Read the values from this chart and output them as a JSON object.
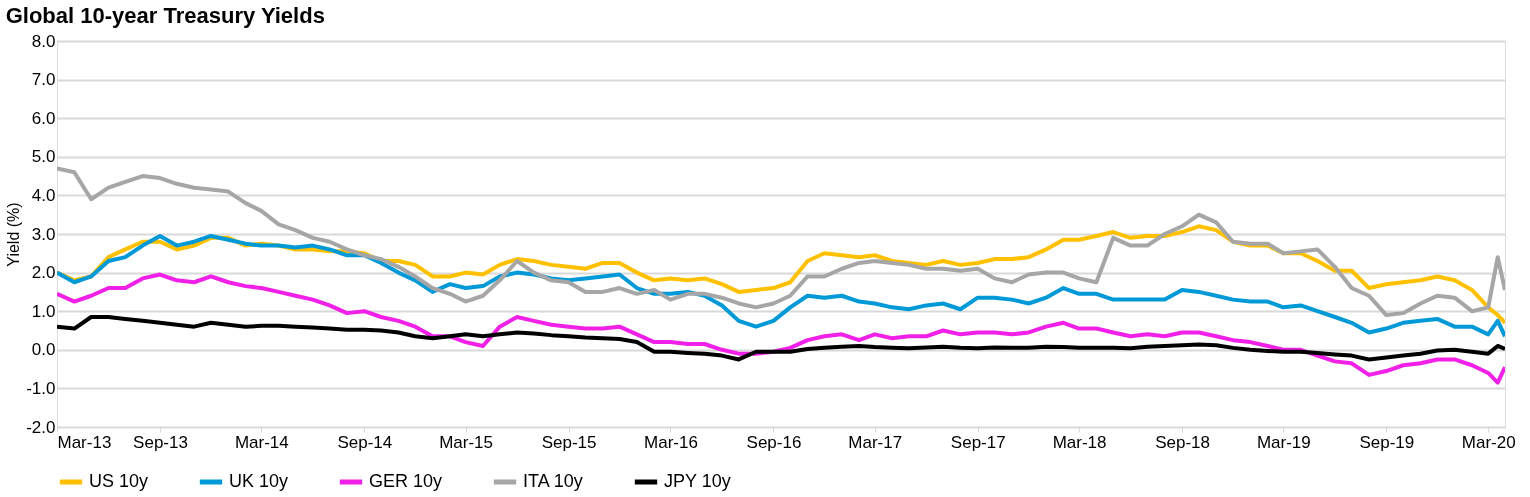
{
  "chart_data": {
    "type": "line",
    "title": "Global 10-year Treasury Yields",
    "ylabel": "Yield (%)",
    "x": [
      "2013-03-01",
      "2013-04-01",
      "2013-05-01",
      "2013-06-01",
      "2013-07-01",
      "2013-08-01",
      "2013-09-01",
      "2013-10-01",
      "2013-11-01",
      "2013-12-01",
      "2014-01-01",
      "2014-02-01",
      "2014-03-01",
      "2014-04-01",
      "2014-05-01",
      "2014-06-01",
      "2014-07-01",
      "2014-08-01",
      "2014-09-01",
      "2014-10-01",
      "2014-11-01",
      "2014-12-01",
      "2015-01-01",
      "2015-02-01",
      "2015-03-01",
      "2015-04-01",
      "2015-05-01",
      "2015-06-01",
      "2015-07-01",
      "2015-08-01",
      "2015-09-01",
      "2015-10-01",
      "2015-11-01",
      "2015-12-01",
      "2016-01-01",
      "2016-02-01",
      "2016-03-01",
      "2016-04-01",
      "2016-05-01",
      "2016-06-01",
      "2016-07-01",
      "2016-08-01",
      "2016-09-01",
      "2016-10-01",
      "2016-11-01",
      "2016-12-01",
      "2017-01-01",
      "2017-02-01",
      "2017-03-01",
      "2017-04-01",
      "2017-05-01",
      "2017-06-01",
      "2017-07-01",
      "2017-08-01",
      "2017-09-01",
      "2017-10-01",
      "2017-11-01",
      "2017-12-01",
      "2018-01-01",
      "2018-02-01",
      "2018-03-01",
      "2018-04-01",
      "2018-05-01",
      "2018-06-01",
      "2018-07-01",
      "2018-08-01",
      "2018-09-01",
      "2018-10-01",
      "2018-11-01",
      "2018-12-01",
      "2019-01-01",
      "2019-02-01",
      "2019-03-01",
      "2019-04-01",
      "2019-05-01",
      "2019-06-01",
      "2019-07-01",
      "2019-08-01",
      "2019-09-01",
      "2019-10-01",
      "2019-11-01",
      "2019-12-01",
      "2020-01-01",
      "2020-02-01",
      "2020-03-01",
      "2020-03-18",
      "2020-03-31"
    ],
    "series": [
      {
        "name": "US 10y",
        "color": "#ffc000",
        "values": [
          2.0,
          1.8,
          1.9,
          2.4,
          2.6,
          2.8,
          2.8,
          2.6,
          2.7,
          2.9,
          2.9,
          2.7,
          2.75,
          2.7,
          2.6,
          2.6,
          2.55,
          2.55,
          2.5,
          2.3,
          2.3,
          2.2,
          1.9,
          1.9,
          2.0,
          1.95,
          2.2,
          2.35,
          2.3,
          2.2,
          2.15,
          2.1,
          2.25,
          2.25,
          2.0,
          1.8,
          1.85,
          1.8,
          1.85,
          1.7,
          1.5,
          1.55,
          1.6,
          1.75,
          2.3,
          2.5,
          2.45,
          2.4,
          2.45,
          2.3,
          2.25,
          2.2,
          2.3,
          2.2,
          2.25,
          2.35,
          2.35,
          2.4,
          2.6,
          2.85,
          2.85,
          2.95,
          3.05,
          2.9,
          2.95,
          2.95,
          3.05,
          3.2,
          3.1,
          2.8,
          2.7,
          2.7,
          2.5,
          2.5,
          2.3,
          2.05,
          2.05,
          1.6,
          1.7,
          1.75,
          1.8,
          1.9,
          1.8,
          1.55,
          1.1,
          0.9,
          0.7
        ]
      },
      {
        "name": "UK 10y",
        "color": "#0099d8",
        "values": [
          2.0,
          1.75,
          1.9,
          2.3,
          2.4,
          2.7,
          2.95,
          2.7,
          2.8,
          2.95,
          2.85,
          2.75,
          2.7,
          2.7,
          2.65,
          2.7,
          2.6,
          2.45,
          2.45,
          2.25,
          2.0,
          1.8,
          1.5,
          1.7,
          1.6,
          1.65,
          1.9,
          2.0,
          1.95,
          1.85,
          1.8,
          1.85,
          1.9,
          1.95,
          1.6,
          1.45,
          1.45,
          1.5,
          1.4,
          1.15,
          0.75,
          0.6,
          0.75,
          1.1,
          1.4,
          1.35,
          1.4,
          1.25,
          1.2,
          1.1,
          1.05,
          1.15,
          1.2,
          1.05,
          1.35,
          1.35,
          1.3,
          1.2,
          1.35,
          1.6,
          1.45,
          1.45,
          1.3,
          1.3,
          1.3,
          1.3,
          1.55,
          1.5,
          1.4,
          1.3,
          1.25,
          1.25,
          1.1,
          1.15,
          1.0,
          0.85,
          0.7,
          0.45,
          0.55,
          0.7,
          0.75,
          0.8,
          0.6,
          0.6,
          0.4,
          0.75,
          0.35
        ]
      },
      {
        "name": "GER 10y",
        "color": "#f020e8",
        "values": [
          1.45,
          1.25,
          1.4,
          1.6,
          1.6,
          1.85,
          1.95,
          1.8,
          1.75,
          1.9,
          1.75,
          1.65,
          1.6,
          1.5,
          1.4,
          1.3,
          1.15,
          0.95,
          1.0,
          0.85,
          0.75,
          0.6,
          0.35,
          0.35,
          0.2,
          0.1,
          0.6,
          0.85,
          0.75,
          0.65,
          0.6,
          0.55,
          0.55,
          0.6,
          0.4,
          0.2,
          0.2,
          0.15,
          0.15,
          0.0,
          -0.1,
          -0.1,
          -0.05,
          0.05,
          0.25,
          0.35,
          0.4,
          0.25,
          0.4,
          0.3,
          0.35,
          0.35,
          0.5,
          0.4,
          0.45,
          0.45,
          0.4,
          0.45,
          0.6,
          0.7,
          0.55,
          0.55,
          0.45,
          0.35,
          0.4,
          0.35,
          0.45,
          0.45,
          0.35,
          0.25,
          0.2,
          0.1,
          0.0,
          0.0,
          -0.15,
          -0.3,
          -0.35,
          -0.65,
          -0.55,
          -0.4,
          -0.35,
          -0.25,
          -0.25,
          -0.4,
          -0.6,
          -0.85,
          -0.45
        ]
      },
      {
        "name": "ITA 10y",
        "color": "#a6a6a6",
        "values": [
          4.7,
          4.6,
          3.9,
          4.2,
          4.35,
          4.5,
          4.45,
          4.3,
          4.2,
          4.15,
          4.1,
          3.8,
          3.6,
          3.25,
          3.1,
          2.9,
          2.8,
          2.6,
          2.45,
          2.35,
          2.15,
          1.9,
          1.6,
          1.45,
          1.25,
          1.4,
          1.8,
          2.3,
          2.0,
          1.8,
          1.75,
          1.5,
          1.5,
          1.6,
          1.45,
          1.55,
          1.3,
          1.45,
          1.45,
          1.35,
          1.2,
          1.1,
          1.2,
          1.4,
          1.9,
          1.9,
          2.1,
          2.25,
          2.3,
          2.25,
          2.2,
          2.1,
          2.1,
          2.05,
          2.1,
          1.85,
          1.75,
          1.95,
          2.0,
          2.0,
          1.85,
          1.75,
          2.9,
          2.7,
          2.7,
          3.0,
          3.2,
          3.5,
          3.3,
          2.8,
          2.75,
          2.75,
          2.5,
          2.55,
          2.6,
          2.15,
          1.6,
          1.4,
          0.9,
          0.95,
          1.2,
          1.4,
          1.35,
          1.0,
          1.1,
          2.4,
          1.55
        ]
      },
      {
        "name": "JPY 10y",
        "color": "#000000",
        "values": [
          0.6,
          0.55,
          0.85,
          0.85,
          0.8,
          0.75,
          0.7,
          0.65,
          0.6,
          0.7,
          0.65,
          0.6,
          0.62,
          0.62,
          0.6,
          0.58,
          0.55,
          0.52,
          0.52,
          0.5,
          0.45,
          0.35,
          0.3,
          0.35,
          0.4,
          0.35,
          0.4,
          0.45,
          0.42,
          0.38,
          0.35,
          0.32,
          0.3,
          0.28,
          0.2,
          -0.05,
          -0.05,
          -0.08,
          -0.1,
          -0.15,
          -0.25,
          -0.05,
          -0.05,
          -0.05,
          0.02,
          0.05,
          0.08,
          0.1,
          0.07,
          0.05,
          0.04,
          0.06,
          0.08,
          0.05,
          0.04,
          0.06,
          0.05,
          0.05,
          0.08,
          0.07,
          0.05,
          0.05,
          0.05,
          0.04,
          0.08,
          0.1,
          0.12,
          0.14,
          0.12,
          0.05,
          0.0,
          -0.03,
          -0.05,
          -0.05,
          -0.08,
          -0.12,
          -0.15,
          -0.25,
          -0.2,
          -0.15,
          -0.1,
          -0.02,
          0.0,
          -0.05,
          -0.1,
          0.1,
          0.02
        ]
      }
    ],
    "xlim": [
      "2013-03-01",
      "2020-03-31"
    ],
    "xticks": [
      {
        "value": "2013-03-01",
        "label": "Mar-13"
      },
      {
        "value": "2013-09-01",
        "label": "Sep-13"
      },
      {
        "value": "2014-03-01",
        "label": "Mar-14"
      },
      {
        "value": "2014-09-01",
        "label": "Sep-14"
      },
      {
        "value": "2015-03-01",
        "label": "Mar-15"
      },
      {
        "value": "2015-09-01",
        "label": "Sep-15"
      },
      {
        "value": "2016-03-01",
        "label": "Mar-16"
      },
      {
        "value": "2016-09-01",
        "label": "Sep-16"
      },
      {
        "value": "2017-03-01",
        "label": "Mar-17"
      },
      {
        "value": "2017-09-01",
        "label": "Sep-17"
      },
      {
        "value": "2018-03-01",
        "label": "Mar-18"
      },
      {
        "value": "2018-09-01",
        "label": "Sep-18"
      },
      {
        "value": "2019-03-01",
        "label": "Mar-19"
      },
      {
        "value": "2019-09-01",
        "label": "Sep-19"
      },
      {
        "value": "2020-03-01",
        "label": "Mar-20"
      }
    ],
    "ylim": [
      -2,
      8
    ],
    "yticks": [
      {
        "value": -2,
        "label": "-2.0"
      },
      {
        "value": -1,
        "label": "-1.0"
      },
      {
        "value": 0,
        "label": "0.0"
      },
      {
        "value": 1,
        "label": "1.0"
      },
      {
        "value": 2,
        "label": "2.0"
      },
      {
        "value": 3,
        "label": "3.0"
      },
      {
        "value": 4,
        "label": "4.0"
      },
      {
        "value": 5,
        "label": "5.0"
      },
      {
        "value": 6,
        "label": "6.0"
      },
      {
        "value": 7,
        "label": "7.0"
      },
      {
        "value": 8,
        "label": "8.0"
      }
    ],
    "grid": "y",
    "legend": "bottom",
    "marker": "none",
    "line_style": "solid"
  }
}
